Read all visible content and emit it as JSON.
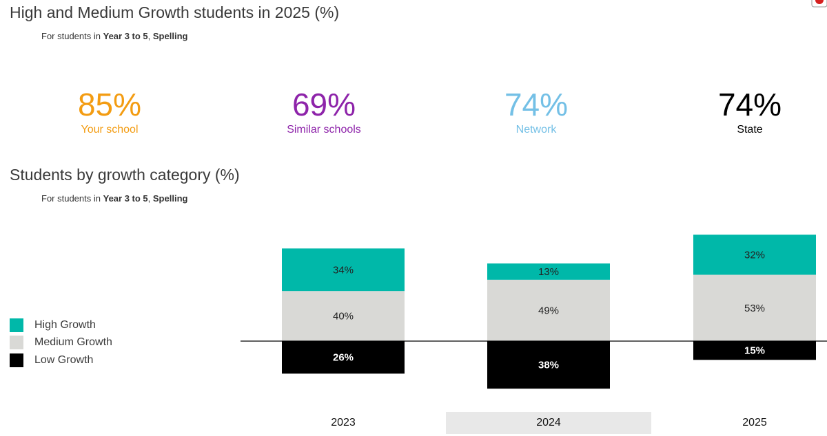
{
  "header": {
    "title": "High and Medium Growth students in 2025 (%)",
    "subtitle_prefix": "For students in ",
    "subtitle_bold_1": "Year 3 to 5",
    "subtitle_sep": ", ",
    "subtitle_bold_2": "Spelling"
  },
  "kpis": [
    {
      "value": "85%",
      "label": "Your school",
      "color": "#f39c12"
    },
    {
      "value": "69%",
      "label": "Similar schools",
      "color": "#8e24aa"
    },
    {
      "value": "74%",
      "label": "Network",
      "color": "#74c0e6"
    },
    {
      "value": "74%",
      "label": "State",
      "color": "#000000"
    }
  ],
  "section": {
    "title": "Students by growth category (%)",
    "subtitle_prefix": "For students in ",
    "subtitle_bold_1": "Year 3 to 5",
    "subtitle_sep": ", ",
    "subtitle_bold_2": "Spelling"
  },
  "legend": [
    {
      "label": "High Growth",
      "color": "#00b8a9"
    },
    {
      "label": "Medium Growth",
      "color": "#d9d9d6"
    },
    {
      "label": "Low Growth",
      "color": "#000000"
    }
  ],
  "chart_data": {
    "type": "bar",
    "stacked": "diverging",
    "categories": [
      "2023",
      "2024",
      "2025"
    ],
    "highlighted_category": "2024",
    "series": [
      {
        "name": "Low Growth",
        "values": [
          26,
          38,
          15
        ],
        "color": "#000000",
        "direction": "down"
      },
      {
        "name": "Medium Growth",
        "values": [
          40,
          49,
          53
        ],
        "color": "#d9d9d6",
        "direction": "up"
      },
      {
        "name": "High Growth",
        "values": [
          34,
          13,
          32
        ],
        "color": "#00b8a9",
        "direction": "up"
      }
    ],
    "data_labels": [
      [
        "26%",
        "38%",
        "15%"
      ],
      [
        "40%",
        "49%",
        "53%"
      ],
      [
        "34%",
        "13%",
        "32%"
      ]
    ],
    "legend_position": "left",
    "grid": false
  }
}
